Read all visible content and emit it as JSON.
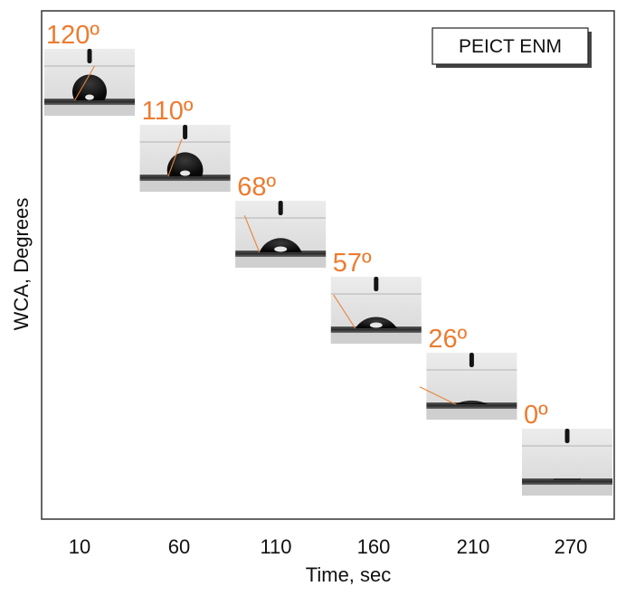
{
  "chart_data": {
    "type": "scatter",
    "xlabel": "Time, sec",
    "ylabel": "WCA, Degrees",
    "legend": "PEICT ENM",
    "legend_position": "top-right",
    "grid": false,
    "categories": [
      "10",
      "60",
      "110",
      "160",
      "210",
      "270"
    ],
    "points": [
      {
        "x": 10,
        "wca": 120,
        "label": "120º"
      },
      {
        "x": 60,
        "wca": 110,
        "label": "110º"
      },
      {
        "x": 110,
        "wca": 68,
        "label": "68º"
      },
      {
        "x": 160,
        "wca": 57,
        "label": "57º"
      },
      {
        "x": 210,
        "wca": 26,
        "label": "26º"
      },
      {
        "x": 270,
        "wca": 0,
        "label": "0º"
      }
    ],
    "marker": "droplet-image",
    "label_color": "#ec7c30"
  }
}
